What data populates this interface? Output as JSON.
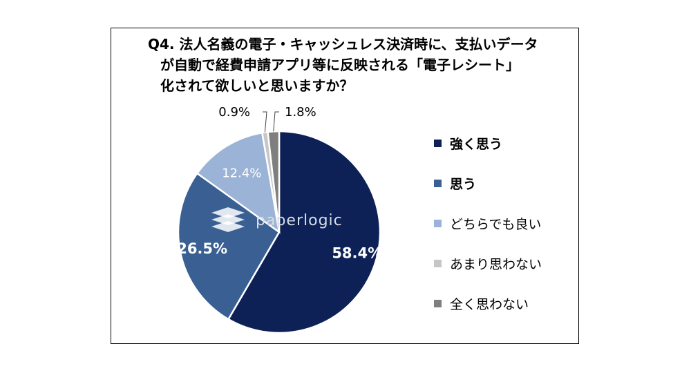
{
  "title_lines": [
    "Q4. 法人名義の電子・キャッシュレス決済時に、支払いデータ",
    "が自動で経費申請アプリ等に反映される「電子レシート」",
    "化されて欲しいと思いますか？"
  ],
  "watermark": "paperlogic",
  "colors": [
    "#0d2157",
    "#3a5f93",
    "#9bb3d6",
    "#c6c6c6",
    "#7f7f7f"
  ],
  "chart_data": {
    "type": "pie",
    "title": "Q4. 法人名義の電子・キャッシュレス決済時に、支払いデータが自動で経費申請アプリ等に反映される「電子レシート」化されて欲しいと思いますか？",
    "categories": [
      "強く思う",
      "思う",
      "どちらでも良い",
      "あまり思わない",
      "全く思わない"
    ],
    "values": [
      58.4,
      26.5,
      12.4,
      0.9,
      1.8
    ],
    "labels": [
      "58.4%",
      "26.5%",
      "12.4%",
      "0.9%",
      "1.8%"
    ],
    "legend": "right"
  }
}
